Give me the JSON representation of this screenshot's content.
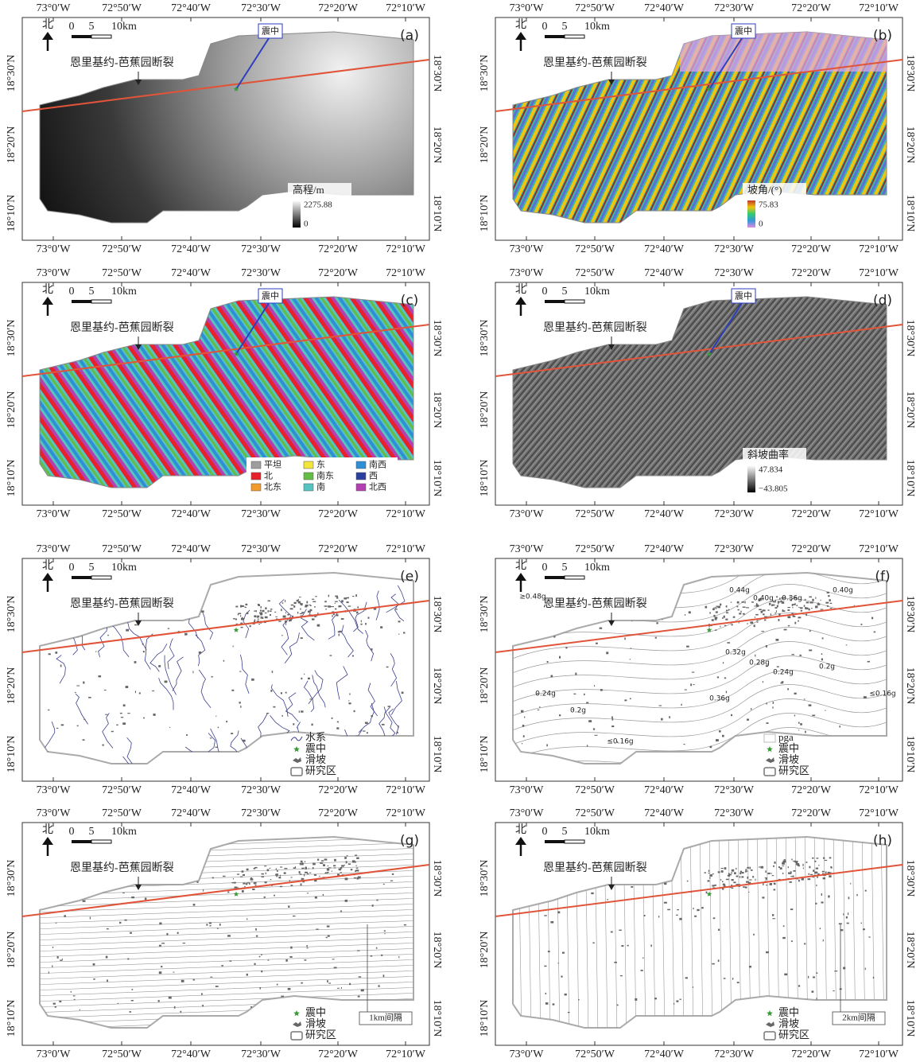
{
  "axes": {
    "lon": [
      "73°0′W",
      "72°50′W",
      "72°40′W",
      "72°30′W",
      "72°20′W",
      "72°10′W"
    ],
    "lat": [
      "18°30′N",
      "18°20′N",
      "18°10′N"
    ]
  },
  "north": "北",
  "scale": [
    "0",
    "5",
    "10km"
  ],
  "fault": "恩里基约-芭蕉园断裂",
  "epicenter": "震中",
  "panels": [
    {
      "label": "(a)",
      "legend": {
        "title": "高程/m",
        "max": "2275.88",
        "min": "0"
      }
    },
    {
      "label": "(b)",
      "legend": {
        "title": "坡角/(°)",
        "max": "75.83",
        "min": "0"
      }
    },
    {
      "label": "(c)",
      "legend": {
        "items": [
          {
            "label": "平坦",
            "color": "#9e9e9e"
          },
          {
            "label": "北",
            "color": "#e8222a"
          },
          {
            "label": "北东",
            "color": "#f39a2c"
          },
          {
            "label": "东",
            "color": "#f4e53a"
          },
          {
            "label": "南东",
            "color": "#63bd45"
          },
          {
            "label": "南",
            "color": "#56c4c0"
          },
          {
            "label": "南西",
            "color": "#2e8fd6"
          },
          {
            "label": "西",
            "color": "#2a3f9e"
          },
          {
            "label": "北西",
            "color": "#b43fb0"
          }
        ]
      }
    },
    {
      "label": "(d)",
      "legend": {
        "title": "斜坡曲率",
        "max": "47.834",
        "min": "−43.805"
      }
    },
    {
      "label": "(e)",
      "legend": {
        "items": [
          "水系",
          "震中",
          "滑坡",
          "研究区"
        ]
      }
    },
    {
      "label": "(f)",
      "legend": {
        "items": [
          "pga",
          "震中",
          "滑坡",
          "研究区"
        ]
      },
      "contour_labels": [
        "≥0.48g",
        "0.44g",
        "0.40g",
        "0.36g",
        "0.40g",
        "0.32g",
        "0.28g",
        "0.24g",
        "0.2g",
        "0.24g",
        "0.2g",
        "0.36g",
        "≤0.16g",
        "≤0.16g"
      ]
    },
    {
      "label": "(g)",
      "legend": {
        "items": [
          "震中",
          "滑坡",
          "研究区"
        ]
      },
      "interval": "1km间隔"
    },
    {
      "label": "(h)",
      "legend": {
        "items": [
          "震中",
          "滑坡",
          "研究区"
        ]
      },
      "interval": "2km间隔"
    }
  ]
}
